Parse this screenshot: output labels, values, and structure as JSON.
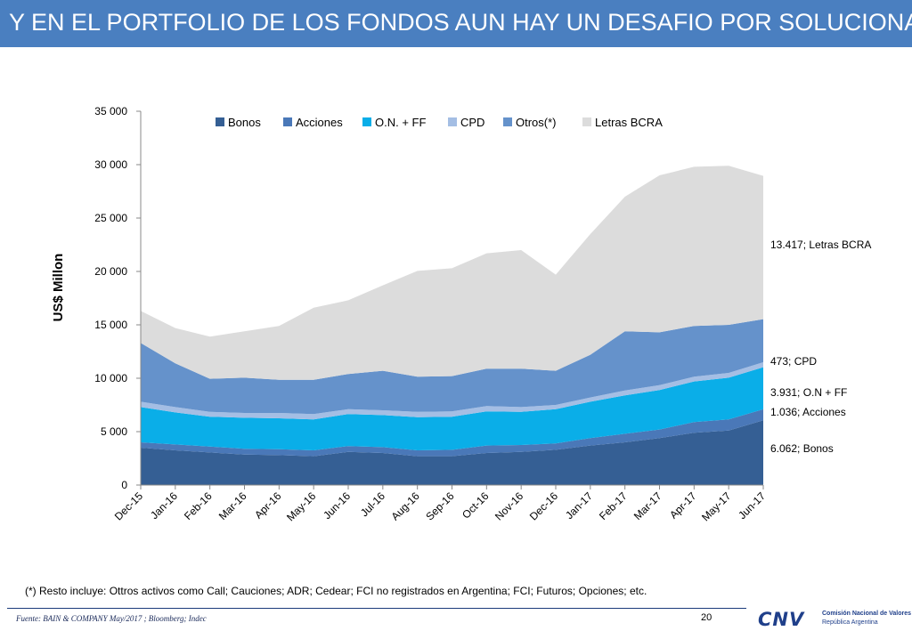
{
  "header": {
    "title": "Y EN EL PORTFOLIO DE LOS FONDOS AUN HAY UN DESAFIO POR SOLUCIONAR"
  },
  "chart_data": {
    "type": "area",
    "stacked": true,
    "ylabel": "US$ Millon",
    "ylim": [
      0,
      35000
    ],
    "yticks": [
      0,
      5000,
      10000,
      15000,
      20000,
      25000,
      30000,
      35000
    ],
    "ytick_labels": [
      "0",
      "5 000",
      "10 000",
      "15 000",
      "20 000",
      "25 000",
      "30 000",
      "35 000"
    ],
    "categories": [
      "Dec-15",
      "Jan-16",
      "Feb-16",
      "Mar-16",
      "Apr-16",
      "May-16",
      "Jun-16",
      "Jul-16",
      "Aug-16",
      "Sep-16",
      "Oct-16",
      "Nov-16",
      "Dec-16",
      "Jan-17",
      "Feb-17",
      "Mar-17",
      "Apr-17",
      "May-17",
      "Jun-17"
    ],
    "legend_position": "top",
    "series": [
      {
        "name": "Bonos",
        "color": "#355f94",
        "values": [
          3500,
          3250,
          3050,
          2850,
          2800,
          2700,
          3100,
          3000,
          2700,
          2700,
          3000,
          3100,
          3300,
          3700,
          4000,
          4400,
          4900,
          5100,
          6062
        ]
      },
      {
        "name": "Acciones",
        "color": "#4a78b8",
        "values": [
          500,
          550,
          550,
          550,
          550,
          550,
          550,
          550,
          550,
          600,
          700,
          650,
          600,
          700,
          800,
          800,
          1000,
          1050,
          1036
        ]
      },
      {
        "name": "O.N. + FF",
        "color": "#0aaee8",
        "values": [
          3300,
          3000,
          2800,
          2900,
          2900,
          2900,
          3000,
          3000,
          3100,
          3100,
          3200,
          3100,
          3200,
          3400,
          3600,
          3700,
          3800,
          3900,
          3931
        ]
      },
      {
        "name": "CPD",
        "color": "#a4bee4",
        "values": [
          500,
          500,
          450,
          450,
          500,
          500,
          450,
          450,
          500,
          500,
          500,
          450,
          400,
          400,
          450,
          450,
          450,
          450,
          473
        ]
      },
      {
        "name": "Otros(*)",
        "color": "#6592cb",
        "values": [
          5500,
          4100,
          3100,
          3300,
          3100,
          3200,
          3300,
          3700,
          3300,
          3300,
          3500,
          3600,
          3200,
          4000,
          5550,
          4950,
          4750,
          4500,
          4028
        ]
      },
      {
        "name": "Letras BCRA",
        "color": "#dcdcdc",
        "values": [
          3000,
          3300,
          3950,
          4350,
          5050,
          6750,
          6900,
          8000,
          9900,
          10100,
          10800,
          11100,
          9000,
          11300,
          12600,
          14700,
          14900,
          14900,
          13417
        ]
      }
    ],
    "annotations": [
      {
        "label": "13.417; Letras BCRA",
        "series": "Letras BCRA"
      },
      {
        "label": "473; CPD",
        "series": "CPD"
      },
      {
        "label": "3.931; O.N + FF",
        "series": "O.N. + FF"
      },
      {
        "label": "1.036; Acciones",
        "series": "Acciones"
      },
      {
        "label": "6.062; Bonos",
        "series": "Bonos"
      }
    ]
  },
  "footnote": "(*) Resto incluye: Ottros activos como Call; Cauciones; ADR; Cedear; FCI no registrados en Argentina; FCI; Futuros; Opciones; etc.",
  "footer": {
    "source": "Fuente: BAIN & COMPANY May/2017 ; Bloomberg; Indec",
    "page_number": "20",
    "logo_text": "CNV",
    "logo_line1": "Comisión Nacional de Valores",
    "logo_line2": "República Argentina"
  }
}
